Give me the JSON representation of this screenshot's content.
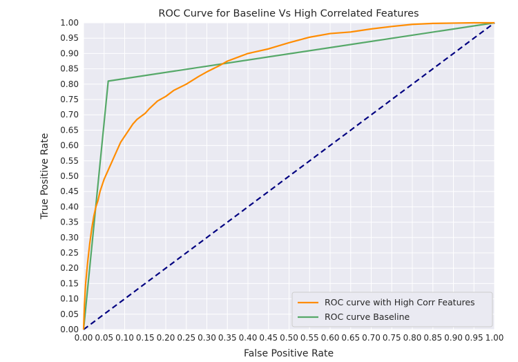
{
  "chart_data": {
    "type": "line",
    "title": "ROC Curve for Baseline Vs High Correlated Features",
    "xlabel": "False Positive Rate",
    "ylabel": "True Positive Rate",
    "xlim": [
      0,
      1
    ],
    "ylim": [
      0,
      1
    ],
    "x_ticks": [
      "0.00",
      "0.05",
      "0.10",
      "0.15",
      "0.20",
      "0.25",
      "0.30",
      "0.35",
      "0.40",
      "0.45",
      "0.50",
      "0.55",
      "0.60",
      "0.65",
      "0.70",
      "0.75",
      "0.80",
      "0.85",
      "0.90",
      "0.95",
      "1.00"
    ],
    "y_ticks": [
      "0.00",
      "0.05",
      "0.10",
      "0.15",
      "0.20",
      "0.25",
      "0.30",
      "0.35",
      "0.40",
      "0.45",
      "0.50",
      "0.55",
      "0.60",
      "0.65",
      "0.70",
      "0.75",
      "0.80",
      "0.85",
      "0.90",
      "0.95",
      "1.00"
    ],
    "grid": true,
    "legend_position": "bottom-right",
    "series": [
      {
        "name": "ROC curve with High Corr Features",
        "color": "#ff8c00",
        "x": [
          0,
          0.002,
          0.005,
          0.01,
          0.015,
          0.02,
          0.025,
          0.03,
          0.035,
          0.04,
          0.045,
          0.05,
          0.06,
          0.07,
          0.08,
          0.09,
          0.1,
          0.11,
          0.12,
          0.13,
          0.14,
          0.15,
          0.16,
          0.18,
          0.2,
          0.22,
          0.25,
          0.28,
          0.3,
          0.33,
          0.35,
          0.38,
          0.4,
          0.45,
          0.5,
          0.55,
          0.6,
          0.65,
          0.7,
          0.75,
          0.8,
          0.85,
          0.9,
          0.95,
          1.0
        ],
        "y": [
          0,
          0.08,
          0.15,
          0.22,
          0.28,
          0.33,
          0.37,
          0.4,
          0.42,
          0.45,
          0.47,
          0.49,
          0.52,
          0.55,
          0.58,
          0.61,
          0.63,
          0.65,
          0.67,
          0.685,
          0.695,
          0.705,
          0.72,
          0.745,
          0.76,
          0.78,
          0.8,
          0.825,
          0.84,
          0.86,
          0.875,
          0.89,
          0.9,
          0.915,
          0.935,
          0.953,
          0.965,
          0.97,
          0.98,
          0.988,
          0.995,
          0.998,
          0.999,
          1.0,
          1.0
        ]
      },
      {
        "name": "ROC curve Baseline",
        "color": "#55a868",
        "x": [
          0,
          0.06,
          1.0
        ],
        "y": [
          0,
          0.81,
          1.0
        ]
      }
    ],
    "reference_line": {
      "x": [
        0,
        1
      ],
      "y": [
        0,
        1
      ],
      "color": "#000080",
      "style": "dashed"
    }
  }
}
